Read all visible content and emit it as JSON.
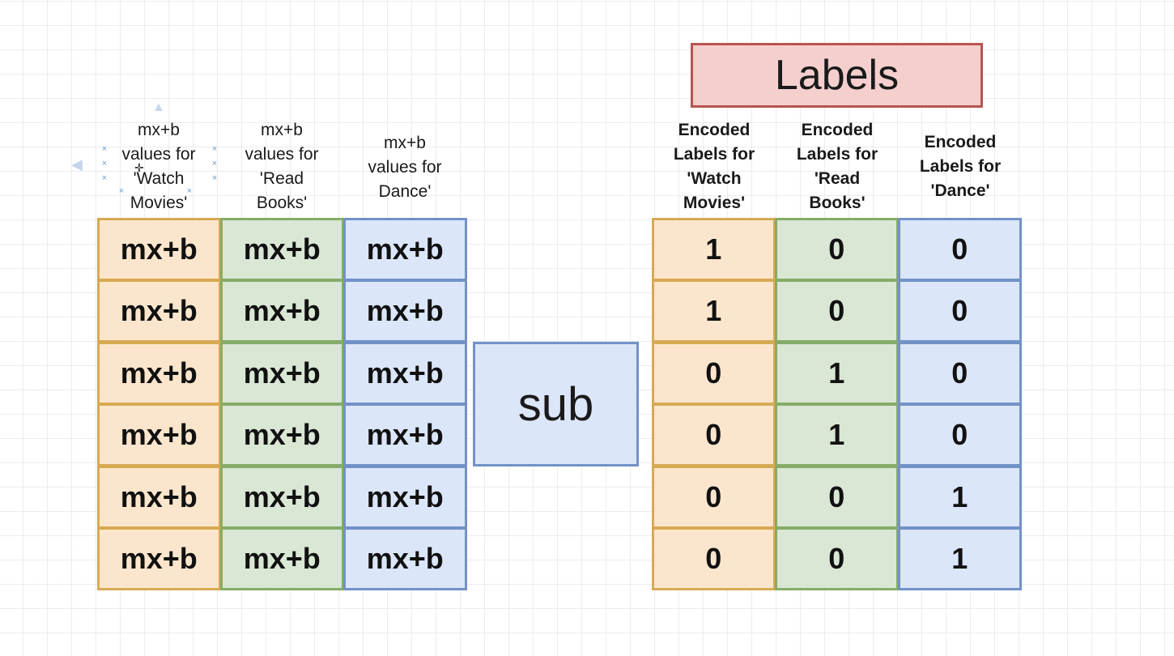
{
  "left_table": {
    "headers": [
      [
        "mx+b",
        "values for",
        "'Watch",
        "Movies'"
      ],
      [
        "mx+b",
        "values for",
        "'Read",
        "Books'"
      ],
      [
        "mx+b",
        "values for",
        "Dance'"
      ]
    ],
    "rows": [
      [
        "mx+b",
        "mx+b",
        "mx+b"
      ],
      [
        "mx+b",
        "mx+b",
        "mx+b"
      ],
      [
        "mx+b",
        "mx+b",
        "mx+b"
      ],
      [
        "mx+b",
        "mx+b",
        "mx+b"
      ],
      [
        "mx+b",
        "mx+b",
        "mx+b"
      ],
      [
        "mx+b",
        "mx+b",
        "mx+b"
      ]
    ]
  },
  "operation": {
    "label": "sub"
  },
  "labels_box": {
    "title": "Labels"
  },
  "right_table": {
    "headers": [
      [
        "Encoded",
        "Labels for",
        "'Watch",
        "Movies'"
      ],
      [
        "Encoded",
        "Labels for",
        "'Read",
        "Books'"
      ],
      [
        "Encoded",
        "Labels for",
        "'Dance'"
      ]
    ],
    "rows": [
      [
        "1",
        "0",
        "0"
      ],
      [
        "1",
        "0",
        "0"
      ],
      [
        "0",
        "1",
        "0"
      ],
      [
        "0",
        "1",
        "0"
      ],
      [
        "0",
        "0",
        "1"
      ],
      [
        "0",
        "0",
        "1"
      ]
    ]
  },
  "colors": {
    "col1_fill": "#fbe6cd",
    "col1_border": "#d7aa52",
    "col2_fill": "#d9e7d4",
    "col2_border": "#86ac68",
    "col3_fill": "#dbe6f9",
    "col3_border": "#7292c8",
    "labels_fill": "#f4cfce",
    "labels_border": "#b85450"
  }
}
